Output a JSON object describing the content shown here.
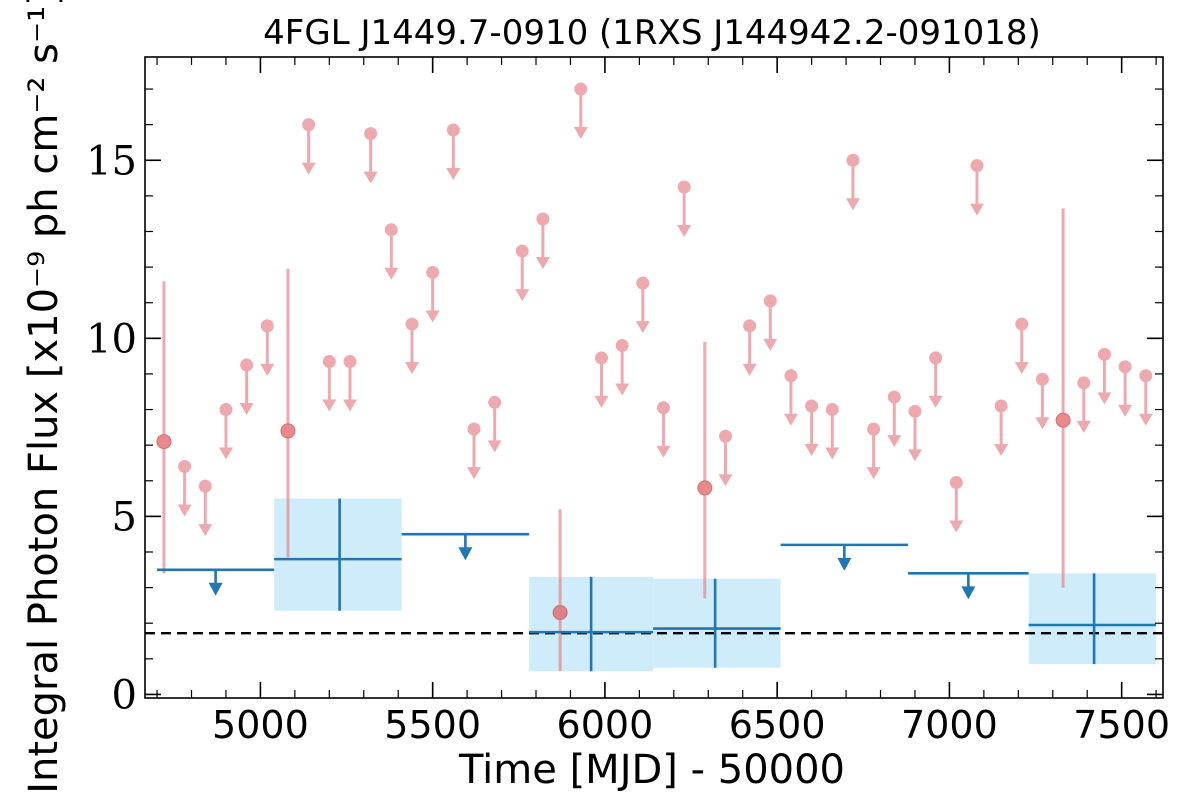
{
  "chart_data": {
    "type": "scatter",
    "title": "4FGL J1449.7-0910 (1RXS J144942.2-091018)",
    "xlabel": "Time [MJD] - 50000",
    "ylabel": "Integral Photon Flux [x10⁻⁹ ph cm⁻² s⁻¹]",
    "xlim": [
      4665,
      7620
    ],
    "ylim": [
      -0.1,
      17.9
    ],
    "x_ticks": [
      "5000",
      "5500",
      "6000",
      "6500",
      "7000",
      "7500"
    ],
    "y_ticks": [
      "0",
      "5",
      "10",
      "15"
    ],
    "grid": false,
    "average_flux_line": 1.72,
    "colors": {
      "short_bins": "#e8868c",
      "long_bins": "#1f77b4",
      "long_bins_fill": "#cfecfb",
      "average_line": "#000000"
    },
    "short_bin_upper_limits": [
      {
        "x": 4780,
        "y": 6.4
      },
      {
        "x": 4840,
        "y": 5.85
      },
      {
        "x": 4900,
        "y": 8.0
      },
      {
        "x": 4960,
        "y": 9.25
      },
      {
        "x": 5020,
        "y": 10.35
      },
      {
        "x": 5140,
        "y": 16.0
      },
      {
        "x": 5200,
        "y": 9.35
      },
      {
        "x": 5260,
        "y": 9.35
      },
      {
        "x": 5320,
        "y": 15.75
      },
      {
        "x": 5380,
        "y": 13.05
      },
      {
        "x": 5440,
        "y": 10.4
      },
      {
        "x": 5500,
        "y": 11.85
      },
      {
        "x": 5560,
        "y": 15.85
      },
      {
        "x": 5620,
        "y": 7.45
      },
      {
        "x": 5680,
        "y": 8.2
      },
      {
        "x": 5760,
        "y": 12.45
      },
      {
        "x": 5820,
        "y": 13.35
      },
      {
        "x": 5930,
        "y": 17.0
      },
      {
        "x": 5990,
        "y": 9.45
      },
      {
        "x": 6050,
        "y": 9.8
      },
      {
        "x": 6110,
        "y": 11.55
      },
      {
        "x": 6170,
        "y": 8.05
      },
      {
        "x": 6230,
        "y": 14.25
      },
      {
        "x": 6350,
        "y": 7.25
      },
      {
        "x": 6420,
        "y": 10.35
      },
      {
        "x": 6480,
        "y": 11.05
      },
      {
        "x": 6540,
        "y": 8.95
      },
      {
        "x": 6600,
        "y": 8.1
      },
      {
        "x": 6660,
        "y": 8.0
      },
      {
        "x": 6720,
        "y": 15.0
      },
      {
        "x": 6780,
        "y": 7.45
      },
      {
        "x": 6840,
        "y": 8.35
      },
      {
        "x": 6900,
        "y": 7.95
      },
      {
        "x": 6960,
        "y": 9.45
      },
      {
        "x": 7020,
        "y": 5.95
      },
      {
        "x": 7080,
        "y": 14.85
      },
      {
        "x": 7150,
        "y": 8.1
      },
      {
        "x": 7210,
        "y": 10.4
      },
      {
        "x": 7270,
        "y": 8.85
      },
      {
        "x": 7390,
        "y": 8.75
      },
      {
        "x": 7450,
        "y": 9.55
      },
      {
        "x": 7510,
        "y": 9.2
      },
      {
        "x": 7570,
        "y": 8.95
      }
    ],
    "short_bin_detections": [
      {
        "x": 4720,
        "y": 7.1,
        "ylo": 3.4,
        "yhi": 11.6
      },
      {
        "x": 5080,
        "y": 7.4,
        "ylo": 3.85,
        "yhi": 11.95
      },
      {
        "x": 5870,
        "y": 2.3,
        "ylo": 0.65,
        "yhi": 5.2
      },
      {
        "x": 6290,
        "y": 5.8,
        "ylo": 2.7,
        "yhi": 9.9
      },
      {
        "x": 7330,
        "y": 7.7,
        "ylo": 3.0,
        "yhi": 13.65
      }
    ],
    "long_bin_upper_limits": [
      {
        "x0": 4700,
        "x1": 5040,
        "y": 3.5
      },
      {
        "x0": 5410,
        "x1": 5780,
        "y": 4.5
      },
      {
        "x0": 6510,
        "x1": 6880,
        "y": 4.2
      },
      {
        "x0": 6880,
        "x1": 7230,
        "y": 3.4
      }
    ],
    "long_bin_detections": [
      {
        "x0": 5040,
        "x1": 5410,
        "xc": 5230,
        "y": 3.8,
        "ylo": 2.35,
        "yhi": 5.5
      },
      {
        "x0": 5780,
        "x1": 6140,
        "xc": 5960,
        "y": 1.75,
        "ylo": 0.65,
        "yhi": 3.3
      },
      {
        "x0": 6140,
        "x1": 6510,
        "xc": 6320,
        "y": 1.85,
        "ylo": 0.75,
        "yhi": 3.25
      },
      {
        "x0": 7230,
        "x1": 7600,
        "xc": 7420,
        "y": 1.95,
        "ylo": 0.85,
        "yhi": 3.4
      }
    ]
  }
}
